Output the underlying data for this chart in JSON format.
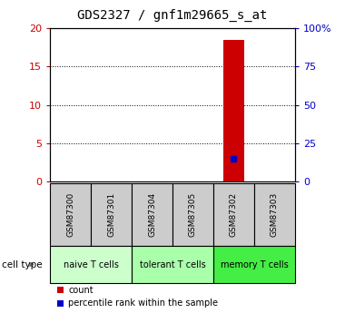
{
  "title": "GDS2327 / gnf1m29665_s_at",
  "samples": [
    "GSM87300",
    "GSM87301",
    "GSM87304",
    "GSM87305",
    "GSM87302",
    "GSM87303"
  ],
  "count_values": [
    0,
    0,
    0,
    0,
    18.5,
    0
  ],
  "percentile_values": [
    0,
    0,
    0,
    0,
    15,
    0
  ],
  "ylim_left": [
    0,
    20
  ],
  "ylim_right": [
    0,
    100
  ],
  "yticks_left": [
    0,
    5,
    10,
    15,
    20
  ],
  "yticks_right": [
    0,
    25,
    50,
    75,
    100
  ],
  "ytick_labels_right": [
    "0",
    "25",
    "50",
    "75",
    "100%"
  ],
  "bar_color": "#cc0000",
  "dot_color": "#0000cc",
  "cell_groups": [
    {
      "label": "naive T cells",
      "start": 0,
      "end": 2,
      "color": "#ccffcc"
    },
    {
      "label": "tolerant T cells",
      "start": 2,
      "end": 4,
      "color": "#aaffaa"
    },
    {
      "label": "memory T cells",
      "start": 4,
      "end": 6,
      "color": "#44ee44"
    }
  ],
  "cell_type_label": "cell type",
  "legend_count": "count",
  "legend_pct": "percentile rank within the sample",
  "grid_yticks": [
    5,
    10,
    15
  ],
  "title_fontsize": 10,
  "tick_label_color_left": "#cc0000",
  "tick_label_color_right": "#0000cc",
  "sample_box_color": "#cccccc",
  "bar_width": 0.5
}
